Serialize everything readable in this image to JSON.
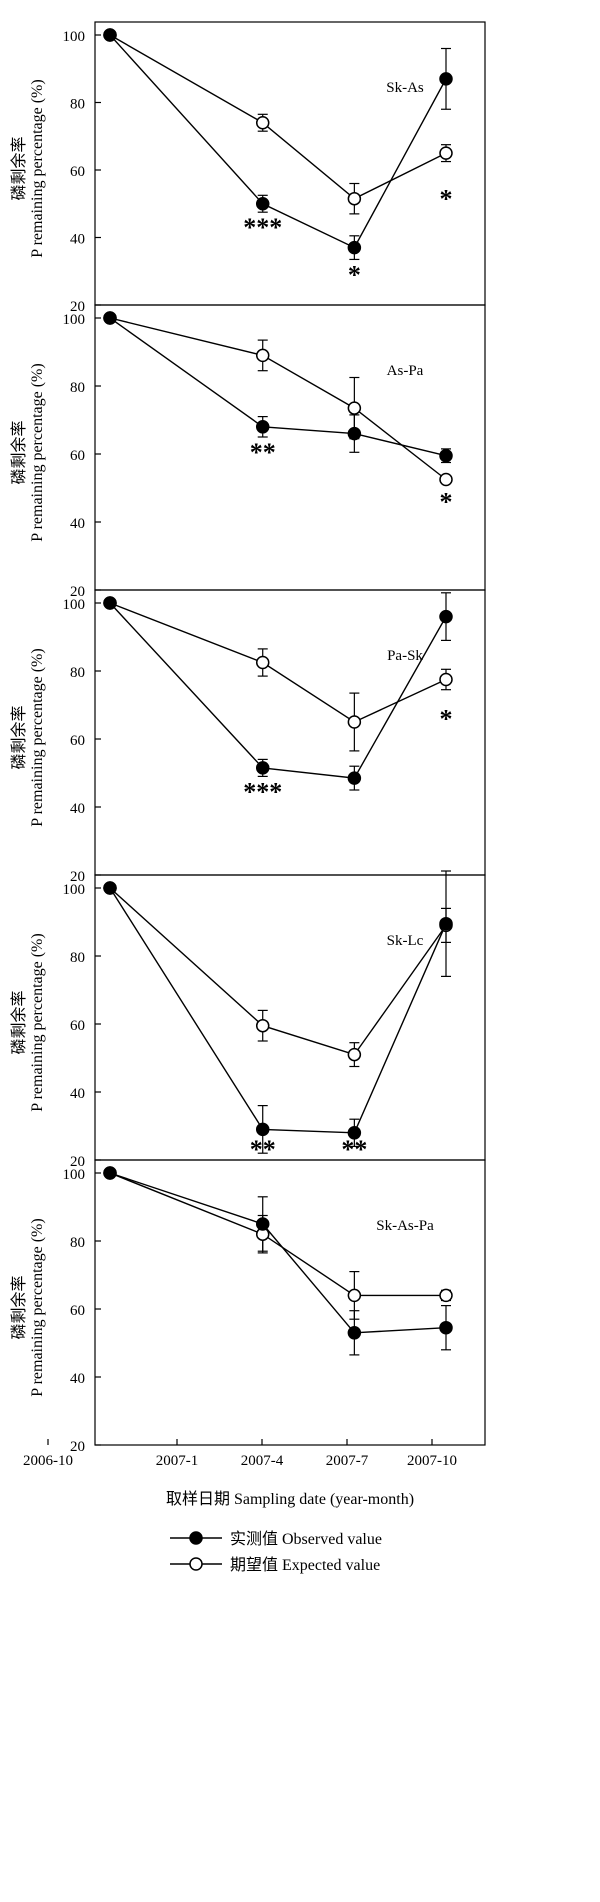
{
  "chart_data": [
    {
      "type": "line",
      "panel_label": "Sk-As",
      "y_axis_labels": [
        "磷剩余率",
        "P remaining percentage (%)"
      ],
      "ylim": [
        20,
        100
      ],
      "y_ticks": [
        20,
        40,
        60,
        80,
        100
      ],
      "series": [
        {
          "key": "observed",
          "points": [
            {
              "x": "2006-11",
              "y": 100,
              "err": 0,
              "sig": ""
            },
            {
              "x": "2007-04",
              "y": 50,
              "err": 2.5,
              "sig": "***"
            },
            {
              "x": "2007-07",
              "y": 37,
              "err": 3.5,
              "sig": "*"
            },
            {
              "x": "2007-10",
              "y": 87,
              "err": 9,
              "sig": "*"
            }
          ]
        },
        {
          "key": "expected",
          "points": [
            {
              "x": "2006-11",
              "y": 100,
              "err": 0
            },
            {
              "x": "2007-04",
              "y": 74,
              "err": 2.5
            },
            {
              "x": "2007-07",
              "y": 51.5,
              "err": 4.5
            },
            {
              "x": "2007-10",
              "y": 65,
              "err": 2.5
            }
          ]
        }
      ]
    },
    {
      "type": "line",
      "panel_label": "As-Pa",
      "y_axis_labels": [
        "磷剩余率",
        "P remaining percentage (%)"
      ],
      "ylim": [
        20,
        100
      ],
      "y_ticks": [
        20,
        40,
        60,
        80,
        100
      ],
      "series": [
        {
          "key": "observed",
          "points": [
            {
              "x": "2006-11",
              "y": 100,
              "err": 0,
              "sig": ""
            },
            {
              "x": "2007-04",
              "y": 68,
              "err": 3,
              "sig": "**"
            },
            {
              "x": "2007-07",
              "y": 66,
              "err": 5.5,
              "sig": ""
            },
            {
              "x": "2007-10",
              "y": 59.5,
              "err": 2,
              "sig": "*"
            }
          ]
        },
        {
          "key": "expected",
          "points": [
            {
              "x": "2006-11",
              "y": 100,
              "err": 0
            },
            {
              "x": "2007-04",
              "y": 89,
              "err": 4.5
            },
            {
              "x": "2007-07",
              "y": 73.5,
              "err": 9
            },
            {
              "x": "2007-10",
              "y": 52.5,
              "err": 1
            }
          ]
        }
      ]
    },
    {
      "type": "line",
      "panel_label": "Pa-Sk",
      "y_axis_labels": [
        "磷剩余率",
        "P remaining percentage (%)"
      ],
      "ylim": [
        20,
        100
      ],
      "y_ticks": [
        20,
        40,
        60,
        80,
        100
      ],
      "series": [
        {
          "key": "observed",
          "points": [
            {
              "x": "2006-11",
              "y": 100,
              "err": 0,
              "sig": ""
            },
            {
              "x": "2007-04",
              "y": 51.5,
              "err": 2.5,
              "sig": "***"
            },
            {
              "x": "2007-07",
              "y": 48.5,
              "err": 3.5,
              "sig": ""
            },
            {
              "x": "2007-10",
              "y": 96,
              "err": 7,
              "sig": "*"
            }
          ]
        },
        {
          "key": "expected",
          "points": [
            {
              "x": "2006-11",
              "y": 100,
              "err": 0
            },
            {
              "x": "2007-04",
              "y": 82.5,
              "err": 4
            },
            {
              "x": "2007-07",
              "y": 65,
              "err": 8.5
            },
            {
              "x": "2007-10",
              "y": 77.5,
              "err": 3
            }
          ]
        }
      ]
    },
    {
      "type": "line",
      "panel_label": "Sk-Lc",
      "y_axis_labels": [
        "磷剩余率",
        "P remaining percentage (%)"
      ],
      "ylim": [
        20,
        100
      ],
      "y_ticks": [
        20,
        40,
        60,
        80,
        100
      ],
      "series": [
        {
          "key": "observed",
          "points": [
            {
              "x": "2006-11",
              "y": 100,
              "err": 0,
              "sig": ""
            },
            {
              "x": "2007-04",
              "y": 29,
              "err": 7,
              "sig": "**"
            },
            {
              "x": "2007-07",
              "y": 28,
              "err": 4,
              "sig": "**"
            },
            {
              "x": "2007-10",
              "y": 89.5,
              "err": 15.5,
              "sig": ""
            }
          ]
        },
        {
          "key": "expected",
          "points": [
            {
              "x": "2006-11",
              "y": 100,
              "err": 0
            },
            {
              "x": "2007-04",
              "y": 59.5,
              "err": 4.5
            },
            {
              "x": "2007-07",
              "y": 51,
              "err": 3.5
            },
            {
              "x": "2007-10",
              "y": 89,
              "err": 5
            }
          ]
        }
      ]
    },
    {
      "type": "line",
      "panel_label": "Sk-As-Pa",
      "y_axis_labels": [
        "磷剩余率",
        "P remaining percentage (%)"
      ],
      "ylim": [
        20,
        100
      ],
      "y_ticks": [
        20,
        40,
        60,
        80,
        100
      ],
      "x_ticks": [
        "2006-10",
        "2007-1",
        "2007-4",
        "2007-7",
        "2007-10"
      ],
      "series": [
        {
          "key": "observed",
          "points": [
            {
              "x": "2006-11",
              "y": 100,
              "err": 0,
              "sig": ""
            },
            {
              "x": "2007-04",
              "y": 85,
              "err": 8,
              "sig": ""
            },
            {
              "x": "2007-07",
              "y": 53,
              "err": 6.5,
              "sig": ""
            },
            {
              "x": "2007-10",
              "y": 54.5,
              "err": 6.5,
              "sig": ""
            }
          ]
        },
        {
          "key": "expected",
          "points": [
            {
              "x": "2006-11",
              "y": 100,
              "err": 0
            },
            {
              "x": "2007-04",
              "y": 82,
              "err": 5.5
            },
            {
              "x": "2007-07",
              "y": 64,
              "err": 7
            },
            {
              "x": "2007-10",
              "y": 64,
              "err": 1.5
            }
          ]
        }
      ]
    }
  ],
  "shared": {
    "x_axis_label_cn": "取样日期",
    "x_axis_label_en": "Sampling date (year-month)",
    "x_axis_label": "取样日期  Sampling date (year-month)",
    "legend": [
      {
        "key": "observed",
        "label": "实测值 Observed value",
        "marker": "filled",
        "color": "#000000"
      },
      {
        "key": "expected",
        "label": "期望值 Expected value",
        "marker": "open",
        "color": "#000000"
      }
    ]
  }
}
